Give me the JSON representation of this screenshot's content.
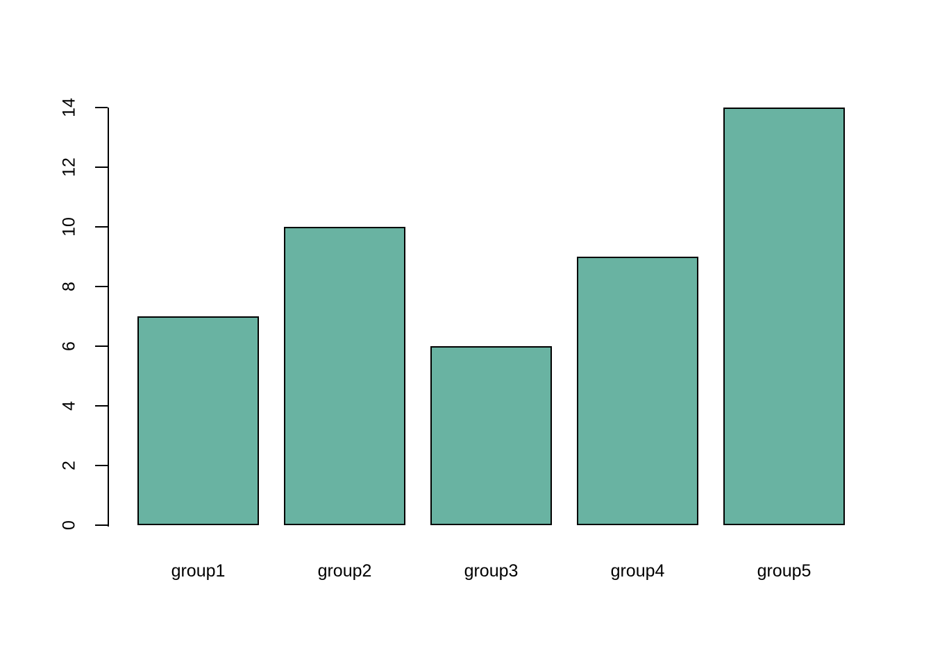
{
  "chart_data": {
    "type": "bar",
    "title": "",
    "xlabel": "",
    "ylabel": "",
    "categories": [
      "group1",
      "group2",
      "group3",
      "group4",
      "group5"
    ],
    "values": [
      7,
      10,
      6,
      9,
      14
    ],
    "ylim": [
      0,
      14
    ],
    "y_ticks": [
      0,
      2,
      4,
      6,
      8,
      10,
      12,
      14
    ],
    "grid": false,
    "legend": false,
    "colors": {
      "bar_fill": "#69b3a2",
      "bar_border": "#000000",
      "axis": "#000000",
      "background": "#ffffff",
      "text": "#000000"
    }
  }
}
